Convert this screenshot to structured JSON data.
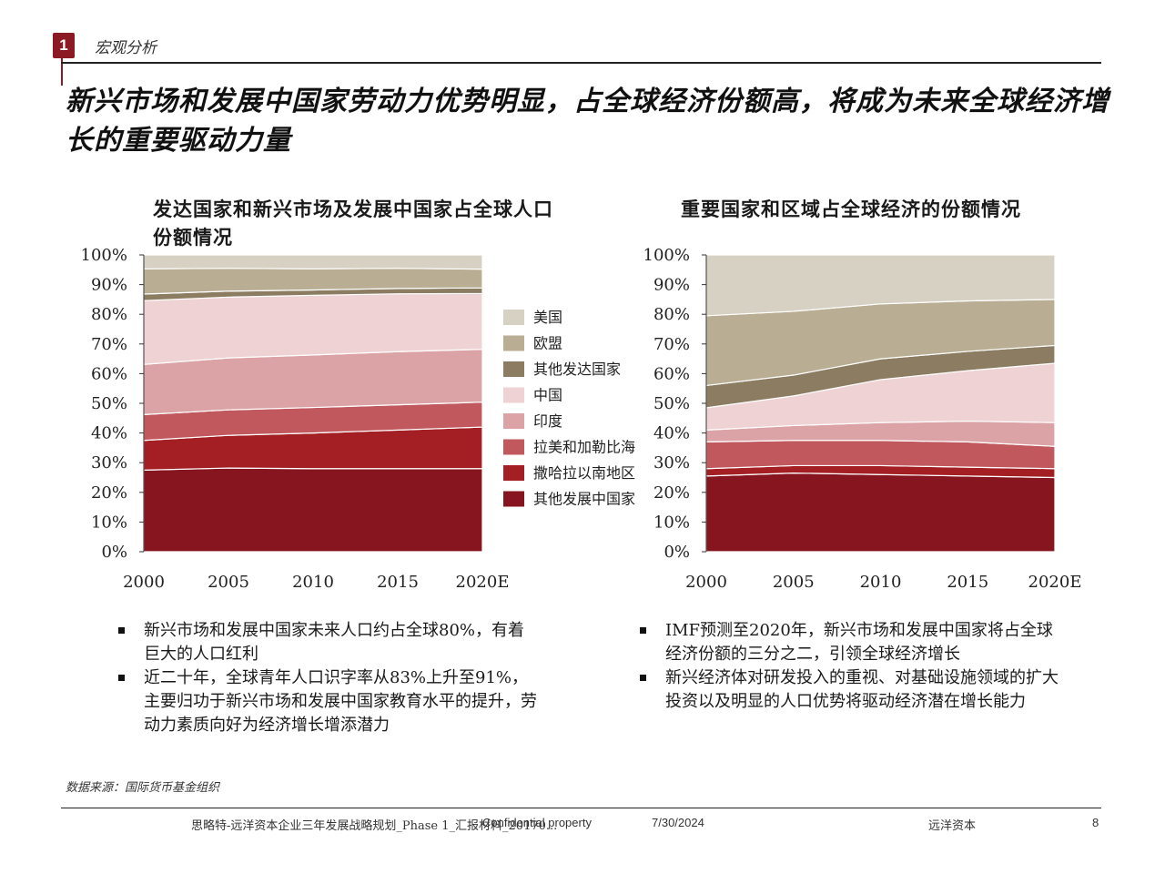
{
  "section": {
    "number": "1",
    "label": "宏观分析"
  },
  "headline": "新兴市场和发展中国家劳动力优势明显，占全球经济份额高，将成为未来全球经济增长的重要驱动力量",
  "colors": {
    "美国": "#d7d1c4",
    "欧盟": "#b9ae93",
    "其他发达国家": "#8c7d62",
    "中国": "#efd2d4",
    "印度": "#dca3a6",
    "拉美和加勒比海": "#c0585e",
    "撒哈拉以南地区": "#a31f23",
    "其他发展中国家": "#871520"
  },
  "chart_data": [
    {
      "type": "area",
      "stacked": true,
      "title": "发达国家和新兴市场及发展中国家占全球人口份额情况",
      "x": [
        2000,
        2005,
        2010,
        2015,
        2020
      ],
      "x_tick_labels": [
        "2000",
        "2005",
        "2010",
        "2015",
        "2020E"
      ],
      "y_tick_labels": [
        "0%",
        "10%",
        "20%",
        "30%",
        "40%",
        "50%",
        "60%",
        "70%",
        "80%",
        "90%",
        "100%"
      ],
      "ylim": [
        0,
        100
      ],
      "series": [
        {
          "name": "其他发展中国家",
          "values": [
            27.5,
            28.2,
            28.0,
            28.0,
            28.0
          ]
        },
        {
          "name": "撒哈拉以南地区",
          "values": [
            10.0,
            11.0,
            12.0,
            13.0,
            14.0
          ]
        },
        {
          "name": "拉美和加勒比海",
          "values": [
            8.7,
            8.6,
            8.6,
            8.5,
            8.4
          ]
        },
        {
          "name": "印度",
          "values": [
            16.9,
            17.5,
            17.7,
            17.9,
            17.8
          ]
        },
        {
          "name": "中国",
          "values": [
            21.5,
            20.5,
            20.1,
            19.5,
            18.8
          ]
        },
        {
          "name": "其他发达国家",
          "values": [
            2.2,
            2.0,
            1.8,
            1.8,
            1.9
          ]
        },
        {
          "name": "欧盟",
          "values": [
            8.5,
            7.7,
            7.1,
            6.8,
            6.3
          ]
        },
        {
          "name": "美国",
          "values": [
            4.7,
            4.5,
            4.7,
            4.5,
            4.8
          ]
        }
      ]
    },
    {
      "type": "area",
      "stacked": true,
      "title": "重要国家和区域占全球经济的份额情况",
      "x": [
        2000,
        2005,
        2010,
        2015,
        2020
      ],
      "x_tick_labels": [
        "2000",
        "2005",
        "2010",
        "2015",
        "2020E"
      ],
      "y_tick_labels": [
        "0%",
        "10%",
        "20%",
        "30%",
        "40%",
        "50%",
        "60%",
        "70%",
        "80%",
        "90%",
        "100%"
      ],
      "ylim": [
        0,
        100
      ],
      "series": [
        {
          "name": "其他发展中国家",
          "values": [
            25.5,
            26.5,
            26.0,
            25.5,
            25.0
          ]
        },
        {
          "name": "撒哈拉以南地区",
          "values": [
            2.5,
            2.5,
            3.0,
            3.0,
            3.0
          ]
        },
        {
          "name": "拉美和加勒比海",
          "values": [
            9.0,
            8.5,
            8.5,
            8.5,
            7.5
          ]
        },
        {
          "name": "印度",
          "values": [
            4.0,
            5.0,
            6.0,
            7.0,
            8.0
          ]
        },
        {
          "name": "中国",
          "values": [
            7.5,
            10.0,
            14.5,
            17.0,
            20.0
          ]
        },
        {
          "name": "其他发达国家",
          "values": [
            7.5,
            7.0,
            7.0,
            6.5,
            6.0
          ]
        },
        {
          "name": "欧盟",
          "values": [
            23.5,
            21.5,
            18.5,
            17.0,
            15.5
          ]
        },
        {
          "name": "美国",
          "values": [
            20.5,
            19.0,
            16.5,
            15.5,
            15.0
          ]
        }
      ]
    }
  ],
  "legend": [
    "美国",
    "欧盟",
    "其他发达国家",
    "中国",
    "印度",
    "拉美和加勒比海",
    "撒哈拉以南地区",
    "其他发展中国家"
  ],
  "bullets_left": [
    "新兴市场和发展中国家未来人口约占全球80%，有着巨大的人口红利",
    "近二十年，全球青年人口识字率从83%上升至91%，主要归功于新兴市场和发展中国家教育水平的提升，劳动力素质向好为经济增长增添潜力"
  ],
  "bullets_right": [
    "IMF预测至2020年，新兴市场和发展中国家将占全球经济份额的三分之二，引领全球经济增长",
    "新兴经济体对研发投入的重视、对基础设施领域的扩大投资以及明显的人口优势将驱动经济潜在增长能力"
  ],
  "source": "数据来源：国际货币基金组织",
  "footer": {
    "doc": "思略特-远洋资本企业三年发展战略规划_Phase 1_汇报材料_20170...",
    "confidential": "Confidential property",
    "date": "7/30/2024",
    "company": "远洋资本",
    "page": "8"
  }
}
